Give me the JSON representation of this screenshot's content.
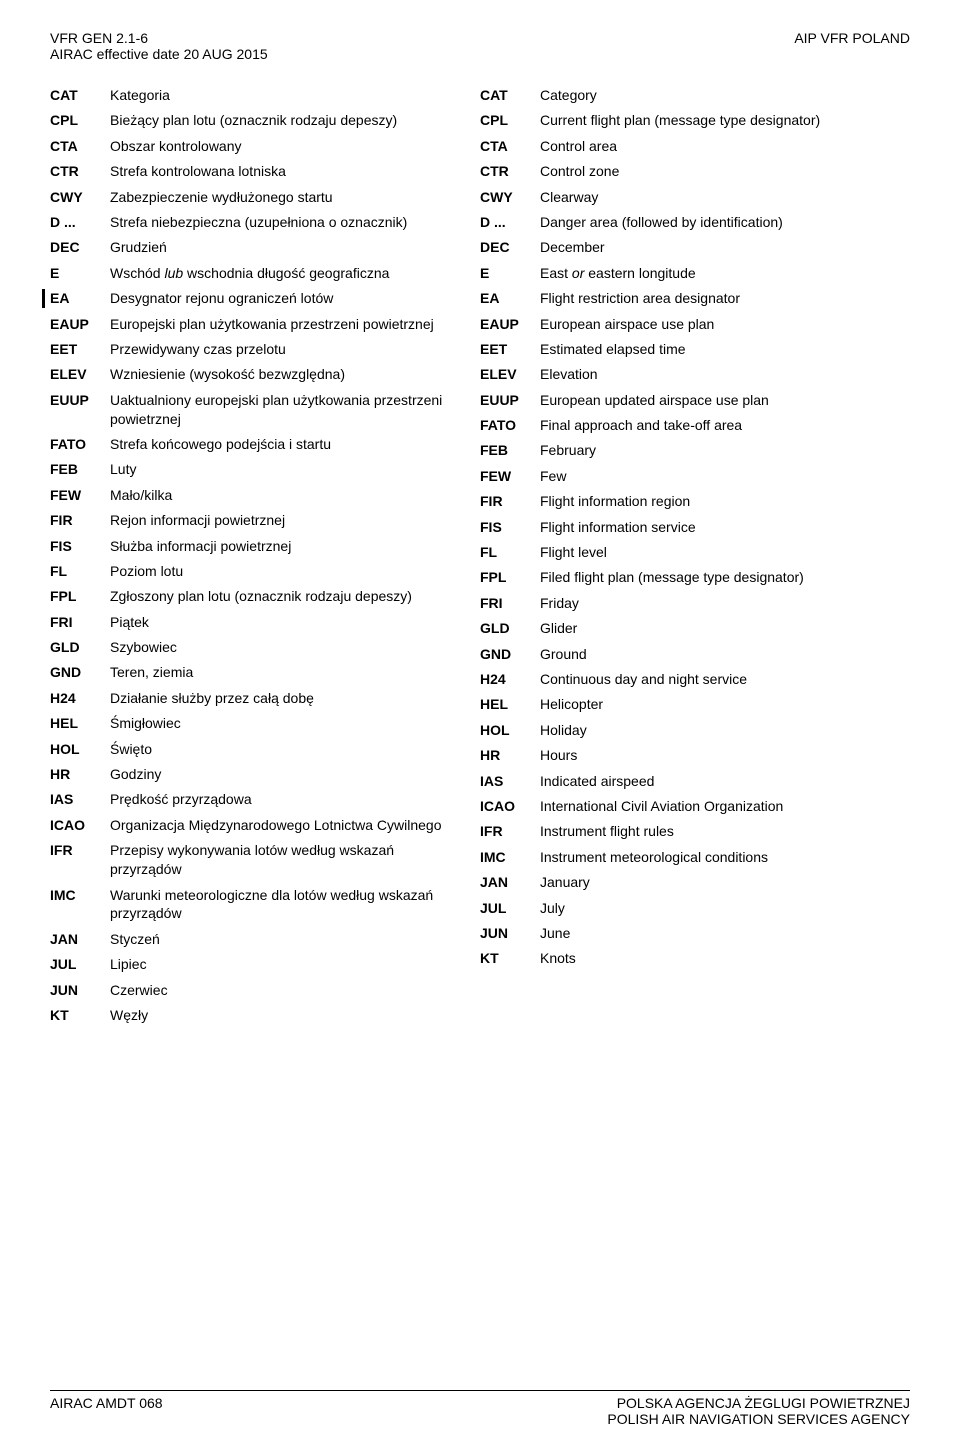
{
  "header": {
    "top_left": "VFR GEN 2.1-6",
    "bottom_left": "AIRAC effective date  20 AUG 2015",
    "top_right": "AIP VFR POLAND"
  },
  "rows": [
    {
      "a": "CAT",
      "pl": "Kategoria",
      "en": "Category"
    },
    {
      "a": "CPL",
      "pl": "Bieżący plan lotu (oznacznik rodzaju depeszy)",
      "en": "Current flight plan (message type designator)"
    },
    {
      "a": "CTA",
      "pl": "Obszar kontrolowany",
      "en": "Control area"
    },
    {
      "a": "CTR",
      "pl": "Strefa kontrolowana lotniska",
      "en": "Control zone"
    },
    {
      "a": "CWY",
      "pl": "Zabezpieczenie wydłużonego startu",
      "en": "Clearway"
    },
    {
      "a": "D ...",
      "pl": "Strefa niebezpieczna (uzupełniona o oznacznik)",
      "en": "Danger area (followed by identification)"
    },
    {
      "a": "DEC",
      "pl": "Grudzień",
      "en": "December"
    },
    {
      "a": "E",
      "pl": "Wschód lub wschodnia długość geograficzna",
      "en": "East or eastern longitude",
      "pl_html": "Wschód <i>lub</i> wschodnia długość geograficzna",
      "en_html": "East <i>or</i> eastern longitude"
    },
    {
      "a": "EA",
      "pl": "Desygnator rejonu ograniczeń lotów",
      "en": "Flight restriction area designator",
      "changebar": true
    },
    {
      "a": "EAUP",
      "pl": "Europejski plan użytkowania przestrzeni powietrznej",
      "en": "European airspace use plan"
    },
    {
      "a": "EET",
      "pl": "Przewidywany czas przelotu",
      "en": "Estimated elapsed time"
    },
    {
      "a": "ELEV",
      "pl": "Wzniesienie (wysokość bezwzględna)",
      "en": "Elevation"
    },
    {
      "a": "EUUP",
      "pl": "Uaktualniony europejski plan użytkowania przestrzeni powietrznej",
      "en": "European updated airspace use plan"
    },
    {
      "a": "FATO",
      "pl": "Strefa końcowego podejścia i startu",
      "en": "Final approach and take-off area"
    },
    {
      "a": "FEB",
      "pl": "Luty",
      "en": "February"
    },
    {
      "a": "FEW",
      "pl": "Mało/kilka",
      "en": "Few"
    },
    {
      "a": "FIR",
      "pl": "Rejon informacji powietrznej",
      "en": "Flight information region"
    },
    {
      "a": "FIS",
      "pl": "Służba informacji powietrznej",
      "en": "Flight information service"
    },
    {
      "a": "FL",
      "pl": "Poziom lotu",
      "en": "Flight level"
    },
    {
      "a": "FPL",
      "pl": "Zgłoszony plan lotu (oznacznik rodzaju depeszy)",
      "en": "Filed flight plan (message type designator)"
    },
    {
      "a": "FRI",
      "pl": "Piątek",
      "en": "Friday"
    },
    {
      "a": "GLD",
      "pl": "Szybowiec",
      "en": "Glider"
    },
    {
      "a": "GND",
      "pl": "Teren, ziemia",
      "en": "Ground"
    },
    {
      "a": "H24",
      "pl": "Działanie służby przez całą dobę",
      "en": "Continuous day and night service"
    },
    {
      "a": "HEL",
      "pl": "Śmigłowiec",
      "en": "Helicopter"
    },
    {
      "a": "HOL",
      "pl": "Święto",
      "en": "Holiday"
    },
    {
      "a": "HR",
      "pl": "Godziny",
      "en": "Hours"
    },
    {
      "a": "IAS",
      "pl": "Prędkość przyrządowa",
      "en": "Indicated airspeed"
    },
    {
      "a": "ICAO",
      "pl": "Organizacja Międzynarodowego Lotnictwa Cywilnego",
      "en": "International Civil Aviation Organization"
    },
    {
      "a": "IFR",
      "pl": "Przepisy wykonywania lotów według wskazań przyrządów",
      "en": "Instrument flight rules"
    },
    {
      "a": "IMC",
      "pl": "Warunki meteorologiczne dla lotów według wskazań przyrządów",
      "en": "Instrument meteorological conditions"
    },
    {
      "a": "JAN",
      "pl": "Styczeń",
      "en": "January"
    },
    {
      "a": "JUL",
      "pl": "Lipiec",
      "en": "July"
    },
    {
      "a": "JUN",
      "pl": "Czerwiec",
      "en": "June"
    },
    {
      "a": "KT",
      "pl": "Węzły",
      "en": "Knots"
    }
  ],
  "footer": {
    "left": "AIRAC AMDT   068",
    "right_1": "POLSKA AGENCJA ŻEGLUGI POWIETRZNEJ",
    "right_2": "POLISH AIR NAVIGATION SERVICES AGENCY"
  }
}
